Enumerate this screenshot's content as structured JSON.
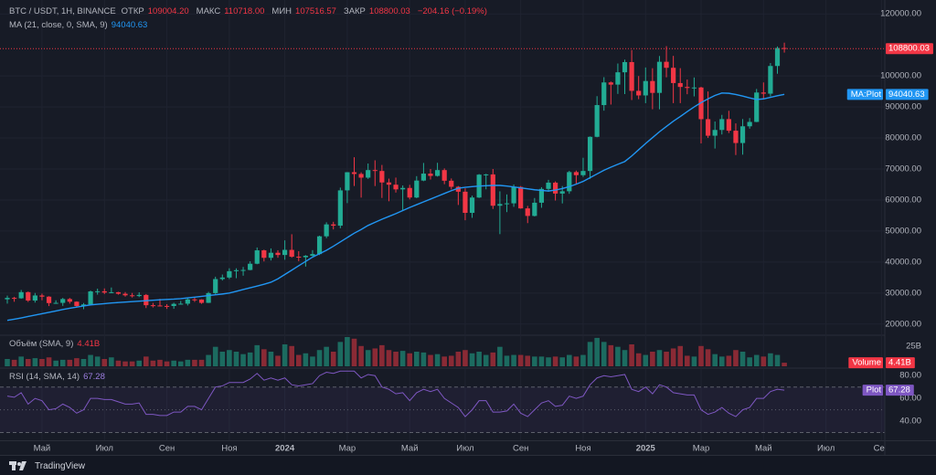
{
  "header": {
    "symbol": "BTC / USDT, 1H, BINANCE",
    "fields": [
      {
        "label": "ОТКР",
        "value": "109004.20"
      },
      {
        "label": "МАКС",
        "value": "110718.00"
      },
      {
        "label": "МИН",
        "value": "107516.57"
      },
      {
        "label": "ЗАКР",
        "value": "108800.03"
      }
    ],
    "change": "−204.16 (−0.19%)"
  },
  "chart_data": [
    {
      "type": "candlestick",
      "categories": [
        null,
        null,
        null,
        null,
        null,
        "Май",
        null,
        null,
        null,
        null,
        null,
        null,
        null,
        null,
        "Июл",
        null,
        null,
        null,
        null,
        null,
        null,
        null,
        null,
        "Сен",
        null,
        null,
        null,
        null,
        null,
        null,
        null,
        null,
        "Ноя",
        null,
        null,
        null,
        null,
        null,
        null,
        null,
        "2024",
        null,
        null,
        null,
        null,
        null,
        null,
        null,
        null,
        "Мар",
        null,
        null,
        null,
        null,
        null,
        null,
        null,
        null,
        "Май",
        null,
        null,
        null,
        null,
        null,
        null,
        null,
        "Июл",
        null,
        null,
        null,
        null,
        null,
        null,
        null,
        "Сен",
        null,
        null,
        null,
        null,
        null,
        null,
        null,
        null,
        "Ноя",
        null,
        null,
        null,
        null,
        null,
        null,
        null,
        null,
        "2025",
        null,
        null,
        null,
        null,
        null,
        null,
        null,
        "Мар",
        null,
        null,
        null,
        null,
        null,
        null,
        null,
        null,
        "Май",
        null,
        null,
        null,
        null,
        null,
        null,
        null,
        null,
        "Июл",
        null,
        null,
        null,
        null,
        null,
        null,
        null,
        "Сен"
      ],
      "open": [
        27990,
        28450,
        28320,
        30300,
        27590,
        29230,
        28850,
        26780,
        26850,
        28080,
        27220,
        25840,
        26340,
        30540,
        30590,
        30170,
        30280,
        29780,
        29280,
        29050,
        29400,
        26090,
        26000,
        25860,
        25830,
        26520,
        26580,
        27970,
        27920,
        26850,
        29990,
        34520,
        35010,
        37060,
        37380,
        37450,
        39460,
        43780,
        41370,
        43000,
        42280,
        43930,
        41730,
        41560,
        42030,
        42580,
        48300,
        52140,
        51730,
        63110,
        68960,
        68390,
        67210,
        69650,
        69360,
        65660,
        64940,
        63430,
        63890,
        60800,
        66270,
        68510,
        67770,
        69650,
        66220,
        64260,
        62680,
        55860,
        60800,
        68170,
        68250,
        58160,
        58710,
        58930,
        64220,
        57300,
        54870,
        59130,
        63580,
        65600,
        62080,
        62820,
        69000,
        68010,
        69360,
        80370,
        90600,
        97900,
        97200,
        101170,
        104460,
        95190,
        93710,
        98360,
        94530,
        104560,
        102620,
        97700,
        96450,
        96120,
        96270,
        86060,
        80730,
        82580,
        86080,
        82340,
        78370,
        83760,
        85170,
        94650,
        94280,
        103200,
        109004.2,
        null,
        null,
        null,
        null,
        null,
        null,
        null,
        null,
        null,
        null,
        null,
        null,
        null,
        null
      ],
      "high": [
        29200,
        28800,
        31000,
        30500,
        30040,
        29820,
        29000,
        27670,
        28450,
        28440,
        27350,
        26800,
        30800,
        31430,
        31500,
        31800,
        30400,
        30340,
        30050,
        30250,
        29690,
        26820,
        28150,
        26420,
        26890,
        27480,
        28580,
        28600,
        28000,
        30400,
        35280,
        35980,
        38000,
        37980,
        38420,
        40250,
        44700,
        44000,
        44400,
        43800,
        47000,
        48970,
        43500,
        42250,
        43850,
        48500,
        52820,
        52980,
        64000,
        69000,
        73780,
        68930,
        71770,
        72800,
        71300,
        66900,
        67230,
        64700,
        64900,
        67700,
        71950,
        70000,
        71990,
        70200,
        66950,
        64500,
        63770,
        61400,
        68370,
        68450,
        70000,
        62800,
        61800,
        65000,
        64500,
        58100,
        60650,
        64130,
        66500,
        66000,
        64500,
        69400,
        69500,
        73620,
        80500,
        93480,
        99590,
        98200,
        104000,
        105250,
        108350,
        99960,
        102720,
        102490,
        106420,
        109590,
        106460,
        102500,
        98830,
        99500,
        96500,
        95000,
        85300,
        87450,
        88760,
        84700,
        86100,
        86420,
        95800,
        97900,
        104150,
        109500,
        110718,
        null,
        null,
        null,
        null,
        null,
        null,
        null,
        null,
        null,
        null,
        null,
        null,
        null,
        null
      ],
      "low": [
        26600,
        27200,
        28170,
        27150,
        26940,
        27680,
        25810,
        26550,
        25880,
        26600,
        25350,
        24800,
        26260,
        29500,
        29700,
        29950,
        29500,
        28860,
        28580,
        28700,
        25170,
        25360,
        25700,
        24900,
        24930,
        26350,
        26000,
        27160,
        26540,
        26800,
        29700,
        34050,
        34520,
        34800,
        35600,
        37350,
        39300,
        40200,
        40500,
        41400,
        40750,
        41400,
        40280,
        38550,
        41880,
        42250,
        47700,
        50520,
        50900,
        59000,
        64500,
        60780,
        66800,
        64500,
        60660,
        59600,
        62400,
        56550,
        60200,
        60600,
        66070,
        66600,
        67550,
        65100,
        63400,
        58400,
        53480,
        54260,
        60650,
        63450,
        57120,
        49000,
        56100,
        57800,
        57200,
        52550,
        54700,
        57500,
        62700,
        59830,
        58900,
        62000,
        65000,
        67450,
        66800,
        80220,
        88800,
        90770,
        94200,
        94150,
        92230,
        92500,
        91220,
        89260,
        89250,
        99550,
        91230,
        91230,
        94100,
        93400,
        78260,
        80000,
        76600,
        81130,
        81600,
        74500,
        74620,
        83000,
        85100,
        92800,
        93400,
        100700,
        107516.57,
        null,
        null,
        null,
        null,
        null,
        null,
        null,
        null,
        null,
        null,
        null,
        null,
        null,
        null
      ],
      "close": [
        28450,
        28320,
        30300,
        27590,
        29230,
        28850,
        26780,
        26850,
        28080,
        27220,
        25840,
        26340,
        30540,
        30590,
        30170,
        30280,
        29780,
        29280,
        29050,
        29400,
        26090,
        26000,
        25860,
        25830,
        26520,
        26580,
        27970,
        27920,
        26850,
        29990,
        34520,
        35010,
        37060,
        37380,
        37450,
        39460,
        43780,
        41370,
        43000,
        42280,
        43930,
        41730,
        41560,
        42030,
        42580,
        48300,
        52140,
        51730,
        63110,
        68960,
        68390,
        67210,
        69650,
        69360,
        65660,
        64940,
        63430,
        63890,
        60800,
        66270,
        68510,
        67770,
        69650,
        66220,
        64260,
        62680,
        55860,
        60800,
        68170,
        68250,
        58160,
        58710,
        58930,
        64220,
        57300,
        54870,
        59130,
        63580,
        65600,
        62080,
        62820,
        69000,
        68010,
        69360,
        80370,
        90600,
        97900,
        97200,
        101170,
        104460,
        95190,
        93710,
        98360,
        94530,
        104560,
        102620,
        97700,
        96450,
        96120,
        96270,
        86060,
        80730,
        82580,
        86080,
        82340,
        78370,
        83760,
        85170,
        94650,
        94280,
        103200,
        109004.2,
        108800.03,
        null,
        null,
        null,
        null,
        null,
        null,
        null,
        null,
        null,
        null,
        null,
        null,
        null,
        null
      ],
      "up_color": "#22ab94",
      "down_color": "#f23645",
      "ylim": [
        17000,
        123000
      ],
      "yticks": [
        {
          "value": 20000,
          "label": "20000.00"
        },
        {
          "value": 30000,
          "label": "30000.00"
        },
        {
          "value": 40000,
          "label": "40000.00"
        },
        {
          "value": 50000,
          "label": "50000.00"
        },
        {
          "value": 60000,
          "label": "60000.00"
        },
        {
          "value": 70000,
          "label": "70000.00"
        },
        {
          "value": 80000,
          "label": "80000.00"
        },
        {
          "value": 90000,
          "label": "90000.00"
        },
        {
          "value": 100000,
          "label": "100000.00"
        },
        {
          "value": 120000,
          "label": "120000.00"
        }
      ],
      "grid": true,
      "price_tag": "108800.03",
      "ma": {
        "name": "MA (21, close, 0, SMA, 9)",
        "legend_value": "94040.63",
        "tag": "MA:Plot",
        "color": "#2196f3",
        "values": [
          21200,
          21600,
          22000,
          22450,
          22900,
          23350,
          23800,
          24250,
          24700,
          25100,
          25500,
          25850,
          26200,
          26400,
          26600,
          26800,
          26950,
          27100,
          27250,
          27400,
          27550,
          27700,
          27850,
          27950,
          28050,
          28200,
          28450,
          28700,
          28950,
          29200,
          29450,
          29700,
          30000,
          30550,
          31150,
          31700,
          32250,
          32850,
          33500,
          34600,
          36000,
          37400,
          38800,
          40200,
          41600,
          42700,
          43800,
          45100,
          46500,
          47900,
          49300,
          50500,
          51800,
          52800,
          53800,
          54700,
          55600,
          56600,
          57600,
          58500,
          59400,
          60300,
          61200,
          62100,
          63000,
          63800,
          64100,
          64300,
          64500,
          64600,
          64700,
          64700,
          64500,
          64200,
          63900,
          63600,
          63300,
          63100,
          62900,
          63200,
          63700,
          64300,
          65100,
          66000,
          67200,
          68400,
          69600,
          70600,
          71500,
          72400,
          74200,
          76200,
          78200,
          80100,
          82000,
          83700,
          85400,
          86900,
          88500,
          90000,
          91400,
          92600,
          93700,
          94500,
          94400,
          94000,
          93500,
          92900,
          92400,
          92600,
          93100,
          93600,
          94040.63,
          null,
          null,
          null,
          null,
          null,
          null,
          null,
          null,
          null,
          null,
          null,
          null,
          null,
          null
        ]
      }
    },
    {
      "type": "bar",
      "title": "Объём (SMA, 9)",
      "legend_value": "4.41B",
      "tag": "Volume",
      "values": [
        9,
        8,
        12,
        9,
        10,
        9,
        11,
        7,
        8,
        8,
        10,
        9,
        14,
        12,
        9,
        11,
        7,
        6,
        6,
        7,
        12,
        7,
        8,
        6,
        7,
        6,
        8,
        8,
        8,
        14,
        24,
        18,
        20,
        18,
        15,
        17,
        26,
        21,
        18,
        13,
        27,
        25,
        14,
        16,
        12,
        20,
        24,
        18,
        30,
        36,
        34,
        25,
        20,
        22,
        26,
        20,
        18,
        19,
        16,
        18,
        17,
        14,
        15,
        12,
        13,
        18,
        20,
        16,
        18,
        14,
        17,
        24,
        13,
        14,
        14,
        13,
        12,
        12,
        11,
        12,
        11,
        14,
        12,
        14,
        30,
        35,
        30,
        26,
        24,
        20,
        27,
        16,
        14,
        18,
        20,
        18,
        22,
        25,
        13,
        12,
        25,
        21,
        15,
        12,
        13,
        20,
        18,
        11,
        14,
        12,
        16,
        14,
        4.41,
        null,
        null,
        null,
        null,
        null,
        null,
        null,
        null,
        null,
        null,
        null,
        null,
        null,
        null
      ],
      "up_color": "#1c6b60",
      "down_color": "#8a2a35",
      "tag_color": "#f23645",
      "ylim": [
        0,
        36
      ],
      "yticks": [
        {
          "value": 25,
          "label": "25B"
        }
      ]
    },
    {
      "type": "line",
      "title": "RSI (14, SMA, 14)",
      "legend_value": "67.28",
      "tag": "Plot",
      "color": "#7e57c2",
      "values": [
        62,
        61,
        65,
        55,
        60,
        58,
        50,
        51,
        55,
        52,
        47,
        50,
        60,
        60,
        59,
        59,
        57,
        55,
        55,
        56,
        46,
        46,
        45,
        45,
        48,
        48,
        53,
        53,
        50,
        60,
        70,
        71,
        74,
        74,
        74,
        77,
        82,
        76,
        78,
        76,
        78,
        72,
        71,
        72,
        73,
        80,
        83,
        82,
        84,
        84,
        84,
        78,
        81,
        80,
        70,
        68,
        64,
        65,
        58,
        65,
        68,
        66,
        68,
        60,
        56,
        52,
        44,
        50,
        58,
        58,
        48,
        48,
        49,
        55,
        47,
        44,
        50,
        56,
        58,
        53,
        54,
        62,
        60,
        62,
        72,
        78,
        80,
        79,
        80,
        81,
        68,
        66,
        70,
        64,
        72,
        70,
        65,
        64,
        63,
        63,
        50,
        46,
        48,
        52,
        47,
        44,
        50,
        52,
        60,
        60,
        66,
        68,
        67.28,
        null,
        null,
        null,
        null,
        null,
        null,
        null,
        null,
        null,
        null,
        null,
        null,
        null,
        null
      ],
      "ylim": [
        24,
        85
      ],
      "yticks": [
        {
          "value": 80,
          "label": "80.00"
        },
        {
          "value": 60,
          "label": "60.00"
        },
        {
          "value": 40,
          "label": "40.00"
        }
      ],
      "bands": {
        "upper": 70,
        "middle": 50,
        "lower": 30
      }
    }
  ],
  "footer": {
    "brand": "TradingView"
  }
}
